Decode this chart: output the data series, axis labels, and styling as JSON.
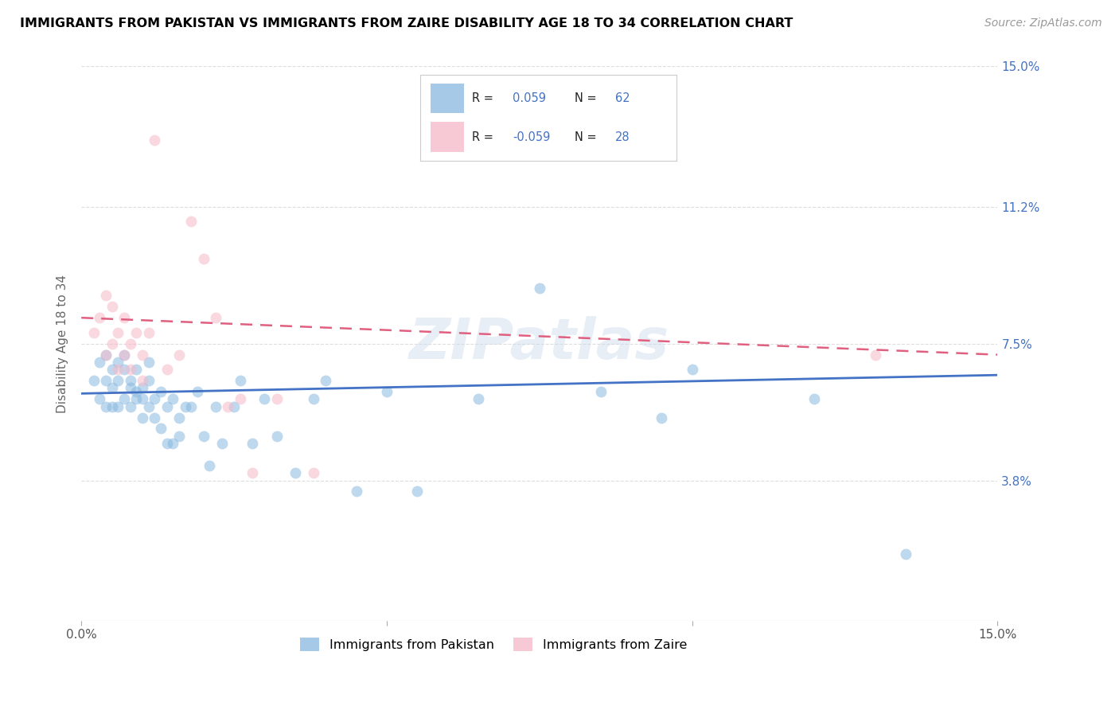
{
  "title": "IMMIGRANTS FROM PAKISTAN VS IMMIGRANTS FROM ZAIRE DISABILITY AGE 18 TO 34 CORRELATION CHART",
  "source": "Source: ZipAtlas.com",
  "ylabel": "Disability Age 18 to 34",
  "xmin": 0.0,
  "xmax": 0.15,
  "ymin": 0.0,
  "ymax": 0.15,
  "yticks": [
    0.0,
    0.038,
    0.075,
    0.112,
    0.15
  ],
  "ytick_labels": [
    "",
    "3.8%",
    "7.5%",
    "11.2%",
    "15.0%"
  ],
  "xtick_positions": [
    0.0,
    0.05,
    0.1,
    0.15
  ],
  "xtick_labels": [
    "0.0%",
    "",
    "",
    "15.0%"
  ],
  "legend_blue_R_val": "0.059",
  "legend_blue_N": "62",
  "legend_pink_R_val": "-0.059",
  "legend_pink_N": "28",
  "blue_color": "#89b8e0",
  "pink_color": "#f5b8c8",
  "blue_line_color": "#4472c4",
  "pink_line_color": "#e06080",
  "watermark": "ZIPatlas",
  "blue_scatter_x": [
    0.002,
    0.003,
    0.003,
    0.004,
    0.004,
    0.004,
    0.005,
    0.005,
    0.005,
    0.006,
    0.006,
    0.006,
    0.007,
    0.007,
    0.007,
    0.008,
    0.008,
    0.008,
    0.009,
    0.009,
    0.009,
    0.01,
    0.01,
    0.01,
    0.011,
    0.011,
    0.011,
    0.012,
    0.012,
    0.013,
    0.013,
    0.014,
    0.014,
    0.015,
    0.015,
    0.016,
    0.016,
    0.017,
    0.018,
    0.019,
    0.02,
    0.021,
    0.022,
    0.023,
    0.025,
    0.026,
    0.028,
    0.03,
    0.032,
    0.035,
    0.038,
    0.04,
    0.045,
    0.05,
    0.055,
    0.065,
    0.075,
    0.085,
    0.095,
    0.1,
    0.12,
    0.135
  ],
  "blue_scatter_y": [
    0.065,
    0.07,
    0.06,
    0.072,
    0.065,
    0.058,
    0.068,
    0.063,
    0.058,
    0.07,
    0.065,
    0.058,
    0.06,
    0.068,
    0.072,
    0.063,
    0.058,
    0.065,
    0.06,
    0.062,
    0.068,
    0.055,
    0.06,
    0.063,
    0.058,
    0.065,
    0.07,
    0.06,
    0.055,
    0.062,
    0.052,
    0.058,
    0.048,
    0.06,
    0.048,
    0.055,
    0.05,
    0.058,
    0.058,
    0.062,
    0.05,
    0.042,
    0.058,
    0.048,
    0.058,
    0.065,
    0.048,
    0.06,
    0.05,
    0.04,
    0.06,
    0.065,
    0.035,
    0.062,
    0.035,
    0.06,
    0.09,
    0.062,
    0.055,
    0.068,
    0.06,
    0.018
  ],
  "pink_scatter_x": [
    0.002,
    0.003,
    0.004,
    0.004,
    0.005,
    0.005,
    0.006,
    0.006,
    0.007,
    0.007,
    0.008,
    0.008,
    0.009,
    0.01,
    0.01,
    0.011,
    0.012,
    0.014,
    0.016,
    0.018,
    0.02,
    0.022,
    0.024,
    0.026,
    0.028,
    0.032,
    0.038,
    0.13
  ],
  "pink_scatter_y": [
    0.078,
    0.082,
    0.072,
    0.088,
    0.075,
    0.085,
    0.068,
    0.078,
    0.072,
    0.082,
    0.075,
    0.068,
    0.078,
    0.065,
    0.072,
    0.078,
    0.13,
    0.068,
    0.072,
    0.108,
    0.098,
    0.082,
    0.058,
    0.06,
    0.04,
    0.06,
    0.04,
    0.072
  ],
  "blue_trend_x": [
    0.0,
    0.15
  ],
  "blue_trend_y": [
    0.0615,
    0.0665
  ],
  "pink_trend_x": [
    0.0,
    0.15
  ],
  "pink_trend_y": [
    0.082,
    0.072
  ],
  "marker_size": 100,
  "alpha": 0.55,
  "grid_color": "#dddddd",
  "grid_linestyle": "--",
  "grid_linewidth": 0.8,
  "right_label_color": "#4472c4",
  "ylabel_color": "#666666",
  "title_fontsize": 11.5,
  "source_fontsize": 10,
  "tick_fontsize": 11,
  "ylabel_fontsize": 11
}
